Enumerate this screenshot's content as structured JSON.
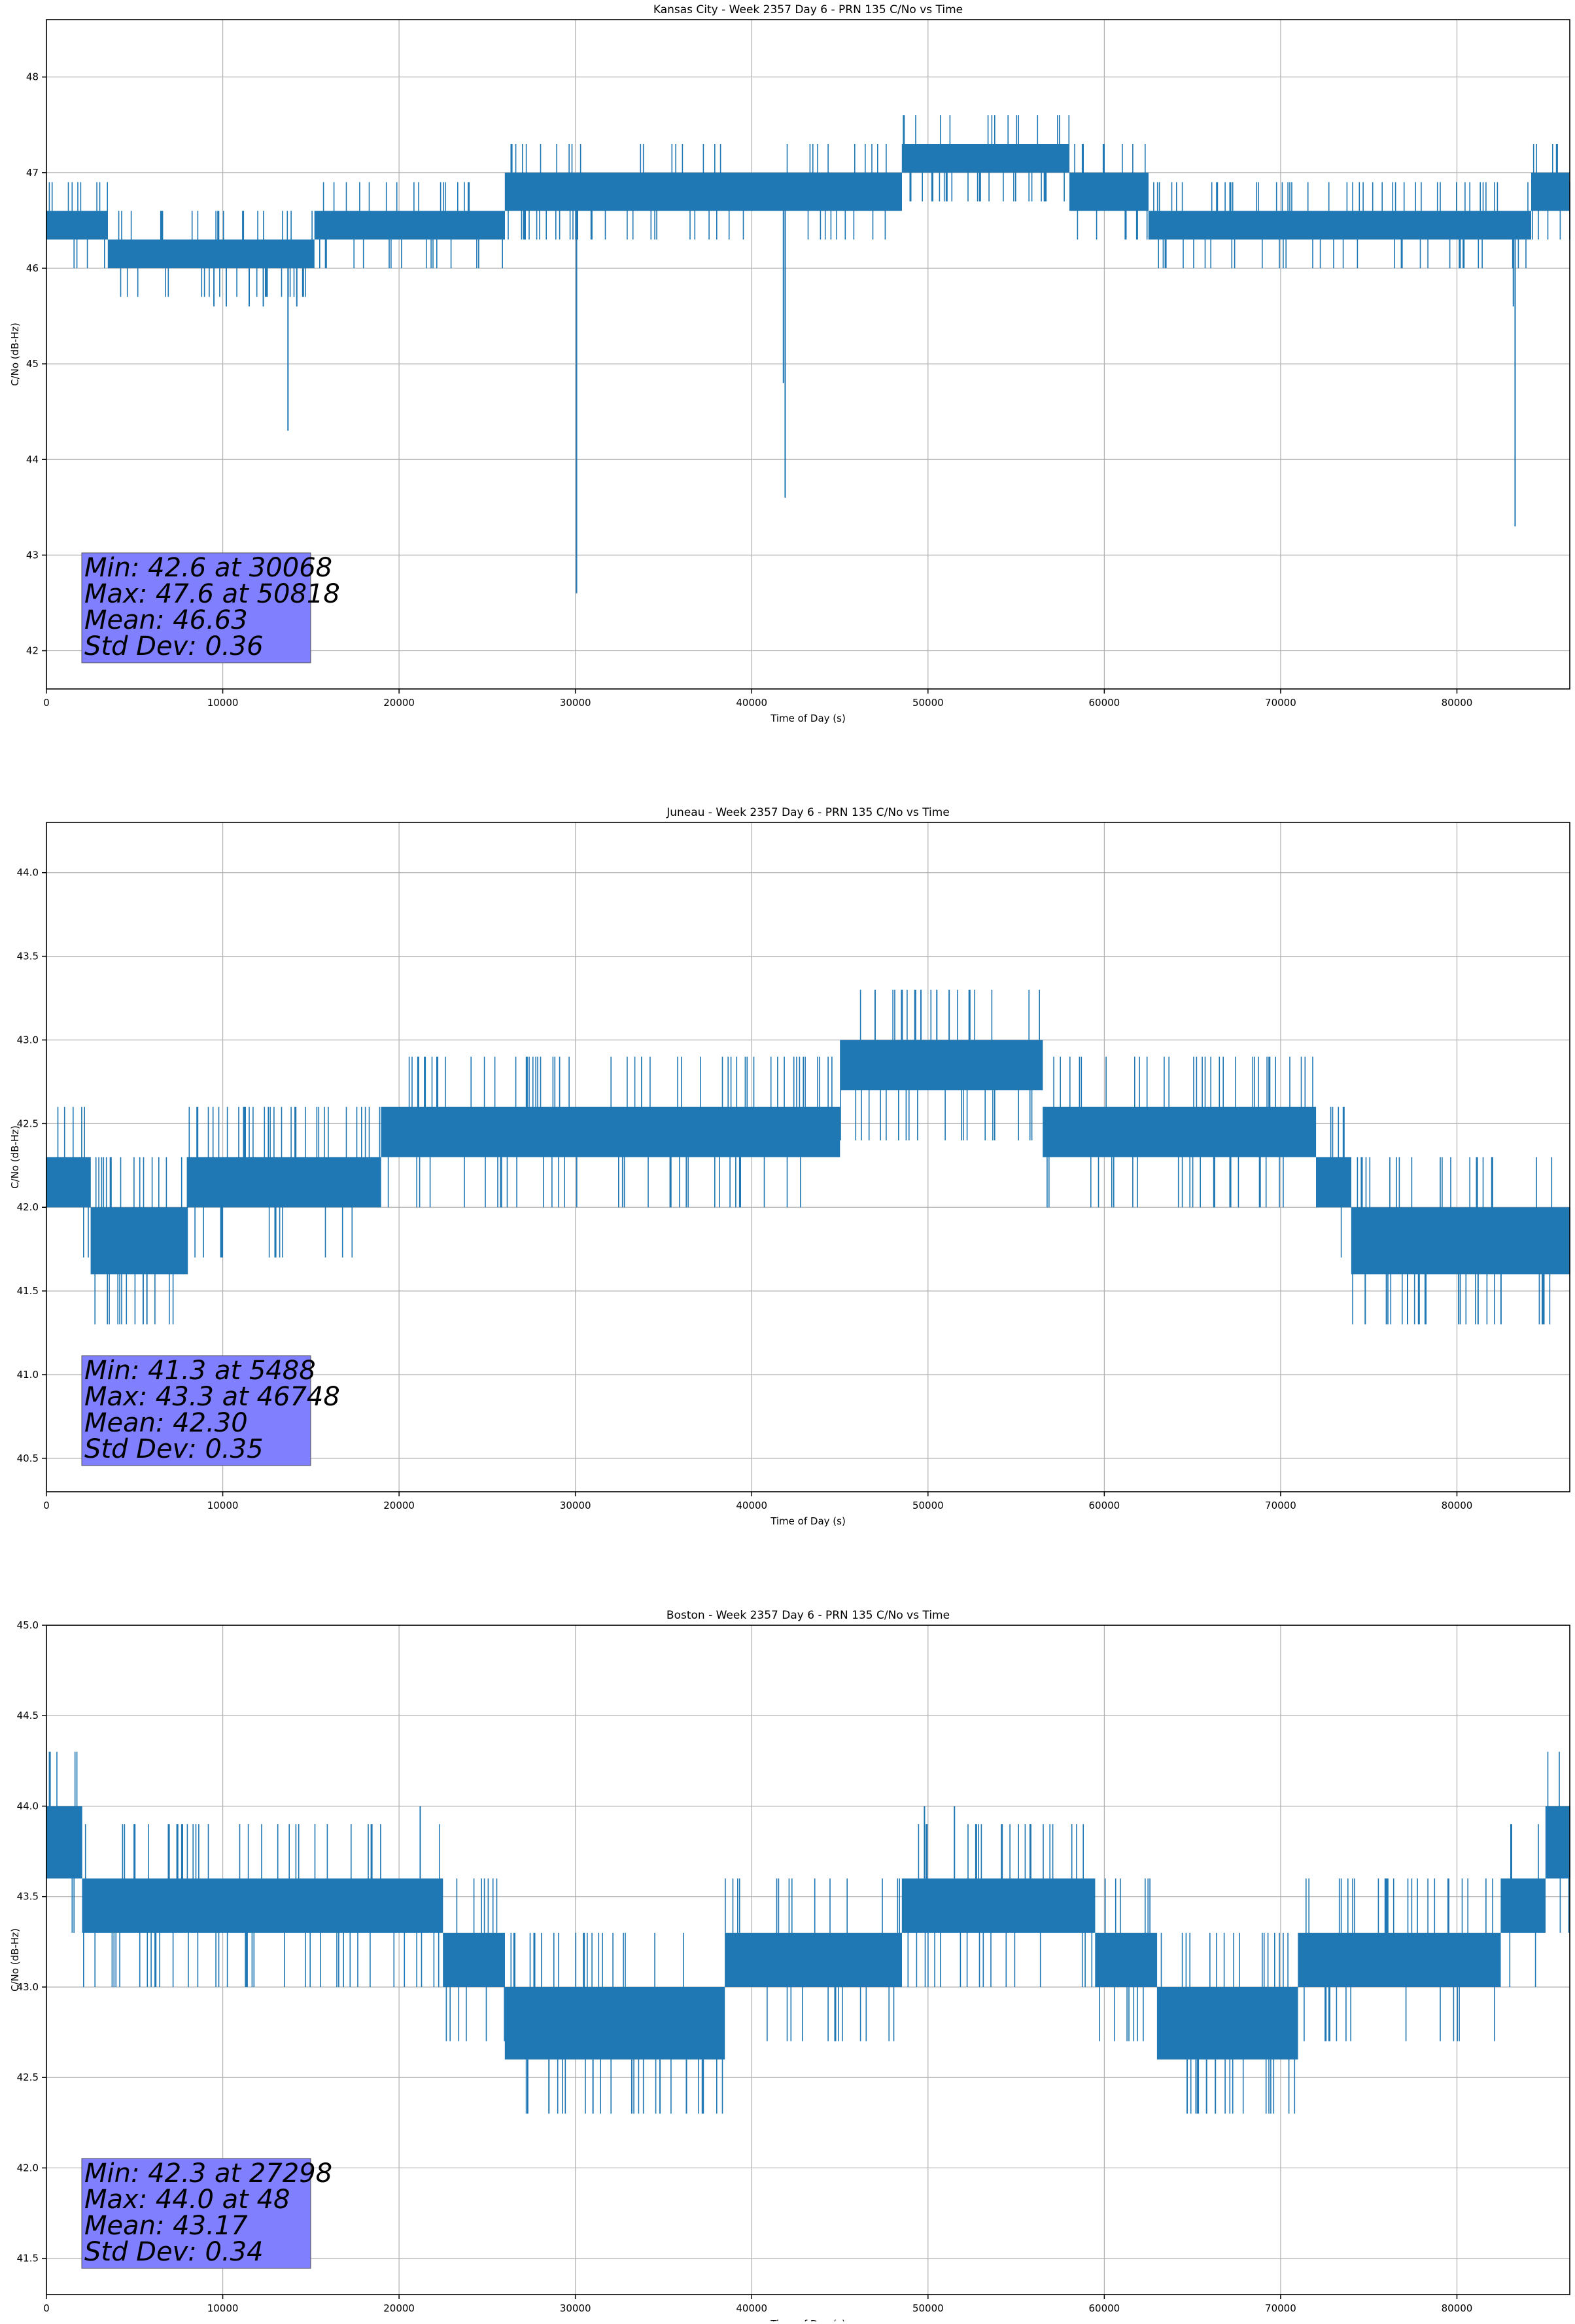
{
  "chart_data": [
    {
      "type": "line",
      "title": "Kansas City - Week 2357 Day 6 - PRN 135 C/No vs Time",
      "xlabel": "Time of Day (s)",
      "ylabel": "C/No (dB-Hz)",
      "xlim": [
        0,
        86400
      ],
      "ylim": [
        41.6,
        48.6
      ],
      "xticks": [
        0,
        10000,
        20000,
        30000,
        40000,
        50000,
        60000,
        70000,
        80000
      ],
      "xtick_labels": [
        "0",
        "10000",
        "20000",
        "30000",
        "40000",
        "50000",
        "60000",
        "70000",
        "80000"
      ],
      "yticks": [
        42,
        43,
        44,
        45,
        46,
        47,
        48
      ],
      "ytick_labels": [
        "42",
        "43",
        "44",
        "45",
        "46",
        "47",
        "48"
      ],
      "grid": true,
      "color": "#1f77b4",
      "band": [
        {
          "x": 0,
          "lo": 46.3,
          "hi": 46.6
        },
        {
          "x": 3000,
          "lo": 46.3,
          "hi": 46.6
        },
        {
          "x": 3500,
          "lo": 46.0,
          "hi": 46.3
        },
        {
          "x": 15000,
          "lo": 46.0,
          "hi": 46.3
        },
        {
          "x": 15200,
          "lo": 46.3,
          "hi": 46.6
        },
        {
          "x": 25500,
          "lo": 46.3,
          "hi": 46.6
        },
        {
          "x": 26000,
          "lo": 46.6,
          "hi": 47.0
        },
        {
          "x": 48000,
          "lo": 46.6,
          "hi": 47.0
        },
        {
          "x": 48500,
          "lo": 47.0,
          "hi": 47.3
        },
        {
          "x": 57500,
          "lo": 47.0,
          "hi": 47.3
        },
        {
          "x": 58000,
          "lo": 46.6,
          "hi": 47.0
        },
        {
          "x": 62000,
          "lo": 46.6,
          "hi": 47.0
        },
        {
          "x": 62500,
          "lo": 46.3,
          "hi": 46.6
        },
        {
          "x": 84000,
          "lo": 46.3,
          "hi": 46.6
        },
        {
          "x": 84200,
          "lo": 46.6,
          "hi": 47.0
        },
        {
          "x": 86000,
          "lo": 46.6,
          "hi": 47.0
        },
        {
          "x": 86400,
          "lo": 46.3,
          "hi": 46.6
        }
      ],
      "noise": {
        "seed": 11,
        "step": 0.3,
        "up_density": 0.35,
        "down_density": 0.35
      },
      "spikes": [
        {
          "x": 9500,
          "y": 45.6
        },
        {
          "x": 10200,
          "y": 45.6
        },
        {
          "x": 11500,
          "y": 45.6
        },
        {
          "x": 12300,
          "y": 45.6
        },
        {
          "x": 13700,
          "y": 44.3
        },
        {
          "x": 14200,
          "y": 45.6
        },
        {
          "x": 30068,
          "y": 42.6
        },
        {
          "x": 41800,
          "y": 44.8
        },
        {
          "x": 41900,
          "y": 43.6
        },
        {
          "x": 83200,
          "y": 45.6
        },
        {
          "x": 83300,
          "y": 43.3
        }
      ],
      "stats": [
        "Min: 42.6 at 30068",
        "Max: 47.6 at 50818",
        "Mean: 46.63",
        "Std Dev: 0.36"
      ]
    },
    {
      "type": "line",
      "title": "Juneau - Week 2357 Day 6 - PRN 135 C/No vs Time",
      "xlabel": "Time of Day (s)",
      "ylabel": "C/No (dB-Hz)",
      "xlim": [
        0,
        86400
      ],
      "ylim": [
        40.3,
        44.3
      ],
      "xticks": [
        0,
        10000,
        20000,
        30000,
        40000,
        50000,
        60000,
        70000,
        80000
      ],
      "xtick_labels": [
        "0",
        "10000",
        "20000",
        "30000",
        "40000",
        "50000",
        "60000",
        "70000",
        "80000"
      ],
      "yticks": [
        40.5,
        41.0,
        41.5,
        42.0,
        42.5,
        43.0,
        43.5,
        44.0
      ],
      "ytick_labels": [
        "40.5",
        "41.0",
        "41.5",
        "42.0",
        "42.5",
        "43.0",
        "43.5",
        "44.0"
      ],
      "grid": true,
      "color": "#1f77b4",
      "band": [
        {
          "x": 0,
          "lo": 42.0,
          "hi": 42.3
        },
        {
          "x": 2000,
          "lo": 42.0,
          "hi": 42.3
        },
        {
          "x": 2500,
          "lo": 41.6,
          "hi": 42.0
        },
        {
          "x": 7500,
          "lo": 41.6,
          "hi": 42.0
        },
        {
          "x": 8000,
          "lo": 42.0,
          "hi": 42.3
        },
        {
          "x": 18500,
          "lo": 42.0,
          "hi": 42.3
        },
        {
          "x": 19000,
          "lo": 42.3,
          "hi": 42.6
        },
        {
          "x": 44500,
          "lo": 42.3,
          "hi": 42.6
        },
        {
          "x": 45000,
          "lo": 42.7,
          "hi": 43.0
        },
        {
          "x": 56000,
          "lo": 42.7,
          "hi": 43.0
        },
        {
          "x": 56500,
          "lo": 42.3,
          "hi": 42.6
        },
        {
          "x": 71500,
          "lo": 42.3,
          "hi": 42.6
        },
        {
          "x": 72000,
          "lo": 42.0,
          "hi": 42.3
        },
        {
          "x": 73500,
          "lo": 42.0,
          "hi": 42.3
        },
        {
          "x": 74000,
          "lo": 41.6,
          "hi": 42.0
        },
        {
          "x": 86400,
          "lo": 41.6,
          "hi": 42.0
        }
      ],
      "noise": {
        "seed": 23,
        "step": 0.3,
        "up_density": 0.35,
        "down_density": 0.35
      },
      "spikes": [
        {
          "x": 5488,
          "y": 41.3
        },
        {
          "x": 5700,
          "y": 41.3
        },
        {
          "x": 47000,
          "y": 43.3
        },
        {
          "x": 48500,
          "y": 43.3
        },
        {
          "x": 49600,
          "y": 43.3
        },
        {
          "x": 50500,
          "y": 43.3
        },
        {
          "x": 51200,
          "y": 43.3
        },
        {
          "x": 74800,
          "y": 41.3
        },
        {
          "x": 76000,
          "y": 41.3
        },
        {
          "x": 77200,
          "y": 41.3
        },
        {
          "x": 80100,
          "y": 41.3
        },
        {
          "x": 81200,
          "y": 41.3
        },
        {
          "x": 82500,
          "y": 41.3
        }
      ],
      "stats": [
        "Min: 41.3 at 5488",
        "Max: 43.3 at 46748",
        "Mean: 42.30",
        "Std Dev: 0.35"
      ]
    },
    {
      "type": "line",
      "title": "Boston - Week 2357 Day 6 - PRN 135 C/No vs Time",
      "xlabel": "Time of Day (s)",
      "ylabel": "C/No (dB-Hz)",
      "xlim": [
        0,
        86400
      ],
      "ylim": [
        41.3,
        45.0
      ],
      "xticks": [
        0,
        10000,
        20000,
        30000,
        40000,
        50000,
        60000,
        70000,
        80000
      ],
      "xtick_labels": [
        "0",
        "10000",
        "20000",
        "30000",
        "40000",
        "50000",
        "60000",
        "70000",
        "80000"
      ],
      "yticks": [
        41.5,
        42.0,
        42.5,
        43.0,
        43.5,
        44.0,
        44.5,
        45.0
      ],
      "ytick_labels": [
        "41.5",
        "42.0",
        "42.5",
        "43.0",
        "43.5",
        "44.0",
        "44.5",
        "45.0"
      ],
      "grid": true,
      "color": "#1f77b4",
      "band": [
        {
          "x": 0,
          "lo": 43.6,
          "hi": 44.0
        },
        {
          "x": 1500,
          "lo": 43.6,
          "hi": 44.0
        },
        {
          "x": 2000,
          "lo": 43.3,
          "hi": 43.6
        },
        {
          "x": 22000,
          "lo": 43.3,
          "hi": 43.6
        },
        {
          "x": 22500,
          "lo": 43.0,
          "hi": 43.3
        },
        {
          "x": 25500,
          "lo": 43.0,
          "hi": 43.3
        },
        {
          "x": 26000,
          "lo": 42.6,
          "hi": 43.0
        },
        {
          "x": 38000,
          "lo": 42.6,
          "hi": 43.0
        },
        {
          "x": 38500,
          "lo": 43.0,
          "hi": 43.3
        },
        {
          "x": 48000,
          "lo": 43.0,
          "hi": 43.3
        },
        {
          "x": 48500,
          "lo": 43.3,
          "hi": 43.6
        },
        {
          "x": 59000,
          "lo": 43.3,
          "hi": 43.6
        },
        {
          "x": 59500,
          "lo": 43.0,
          "hi": 43.3
        },
        {
          "x": 62500,
          "lo": 43.0,
          "hi": 43.3
        },
        {
          "x": 63000,
          "lo": 42.6,
          "hi": 43.0
        },
        {
          "x": 70500,
          "lo": 42.6,
          "hi": 43.0
        },
        {
          "x": 71000,
          "lo": 43.0,
          "hi": 43.3
        },
        {
          "x": 82000,
          "lo": 43.0,
          "hi": 43.3
        },
        {
          "x": 82500,
          "lo": 43.3,
          "hi": 43.6
        },
        {
          "x": 84500,
          "lo": 43.3,
          "hi": 43.6
        },
        {
          "x": 85000,
          "lo": 43.6,
          "hi": 44.0
        },
        {
          "x": 86400,
          "lo": 43.6,
          "hi": 44.0
        }
      ],
      "noise": {
        "seed": 37,
        "step": 0.3,
        "up_density": 0.35,
        "down_density": 0.35
      },
      "spikes": [
        {
          "x": 27298,
          "y": 42.3
        },
        {
          "x": 28500,
          "y": 42.3
        },
        {
          "x": 31000,
          "y": 42.3
        },
        {
          "x": 33200,
          "y": 42.3
        },
        {
          "x": 34800,
          "y": 42.3
        },
        {
          "x": 36300,
          "y": 42.3
        },
        {
          "x": 37200,
          "y": 42.3
        },
        {
          "x": 64700,
          "y": 42.3
        },
        {
          "x": 65200,
          "y": 42.3
        },
        {
          "x": 65800,
          "y": 42.3
        },
        {
          "x": 66300,
          "y": 42.3
        },
        {
          "x": 48,
          "y": 44.0
        },
        {
          "x": 21200,
          "y": 44.0
        },
        {
          "x": 49800,
          "y": 44.0
        },
        {
          "x": 51500,
          "y": 44.0
        }
      ],
      "stats": [
        "Min: 42.3 at 27298",
        "Max: 44.0 at 48",
        "Mean: 43.17",
        "Std Dev: 0.34"
      ]
    }
  ]
}
